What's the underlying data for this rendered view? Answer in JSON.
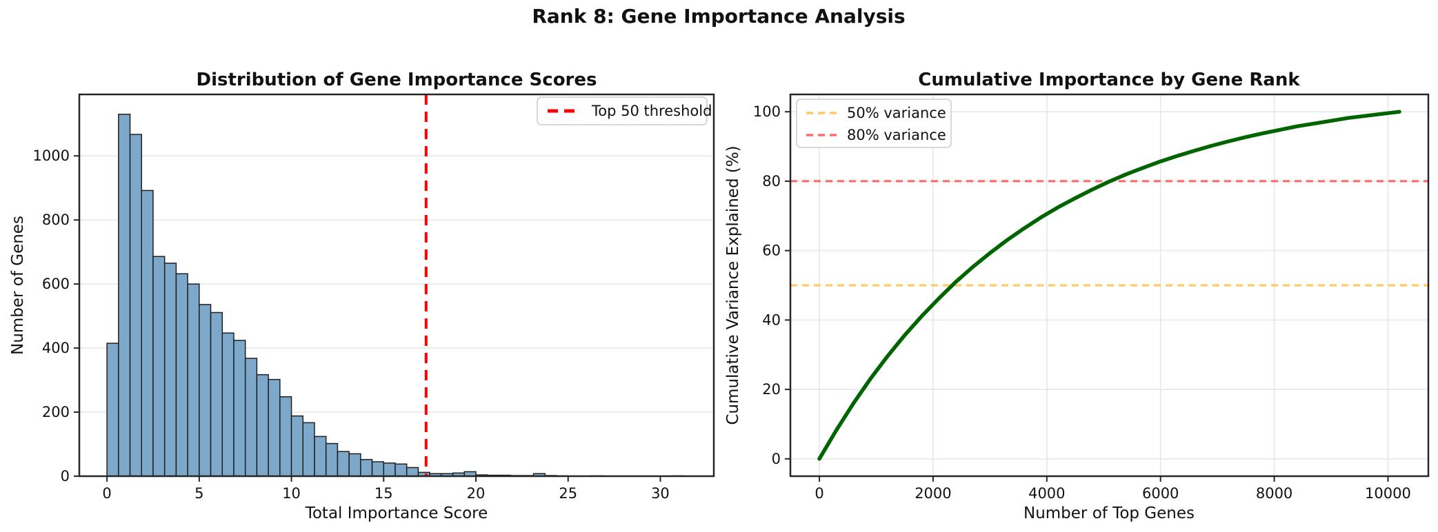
{
  "figure": {
    "suptitle": "Rank 8: Gene Importance Analysis",
    "background": "#ffffff",
    "spine_color": "#262626",
    "grid_color": "#e7e7e7"
  },
  "chart_data": [
    {
      "type": "bar",
      "title": "Distribution of Gene Importance Scores",
      "xlabel": "Total Importance Score",
      "ylabel": "Number of Genes",
      "bar_color": "#7da8ca",
      "bar_edge_color": "#1f1f1f",
      "bin_start": 0,
      "bin_width": 0.625,
      "values": [
        415,
        1130,
        1067,
        892,
        686,
        665,
        632,
        600,
        536,
        511,
        447,
        424,
        368,
        317,
        302,
        248,
        188,
        167,
        124,
        102,
        77,
        70,
        52,
        45,
        41,
        38,
        27,
        12,
        8,
        8,
        10,
        14,
        4,
        3,
        3,
        2,
        2,
        8,
        2,
        1,
        0,
        0,
        1,
        0,
        0,
        0,
        0,
        0,
        0,
        1
      ],
      "xticks": [
        0,
        5,
        10,
        15,
        20,
        25,
        30
      ],
      "yticks": [
        0,
        200,
        400,
        600,
        800,
        1000
      ],
      "xlim": [
        -1.5,
        32.9
      ],
      "ylim": [
        0,
        1192
      ],
      "grid": "y",
      "threshold_line": {
        "x": 17.3,
        "color": "#ff0000",
        "dash": "15 10",
        "width": 4
      },
      "legend": {
        "position": "upper right",
        "entries": [
          {
            "label": "Top 50 threshold",
            "color": "#ff0000",
            "dashed": true
          }
        ]
      }
    },
    {
      "type": "line",
      "title": "Cumulative Importance by Gene Rank",
      "xlabel": "Number of Top Genes",
      "ylabel": "Cumulative Variance Explained (%)",
      "line_color": "#006400",
      "line_width": 5.5,
      "x": [
        0,
        300,
        600,
        900,
        1200,
        1500,
        1800,
        2100,
        2400,
        2700,
        3000,
        3300,
        3600,
        3900,
        4200,
        4500,
        4800,
        5100,
        5400,
        5700,
        6000,
        6300,
        6600,
        6900,
        7200,
        7500,
        7800,
        8100,
        8400,
        8700,
        9000,
        9300,
        9600,
        9900,
        10200
      ],
      "y": [
        0,
        8.3,
        16.0,
        23.1,
        29.6,
        35.6,
        41.1,
        46.2,
        51.0,
        55.3,
        59.3,
        63.0,
        66.4,
        69.6,
        72.5,
        75.1,
        77.6,
        79.9,
        82.0,
        83.9,
        85.7,
        87.3,
        88.8,
        90.2,
        91.5,
        92.7,
        93.8,
        94.8,
        95.8,
        96.6,
        97.4,
        98.2,
        98.8,
        99.4,
        100.0
      ],
      "xticks": [
        0,
        2000,
        4000,
        6000,
        8000,
        10000
      ],
      "yticks": [
        0,
        20,
        40,
        60,
        80,
        100
      ],
      "xlim": [
        -510,
        10710
      ],
      "ylim": [
        -5,
        105
      ],
      "grid": "both",
      "hlines": [
        {
          "y": 50,
          "color": "#ffc966",
          "dash": "10 7",
          "width": 3.2
        },
        {
          "y": 80,
          "color": "#f76f6f",
          "dash": "10 7",
          "width": 3.2
        }
      ],
      "legend": {
        "position": "upper left",
        "entries": [
          {
            "label": "50% variance",
            "color": "#ffc966",
            "dashed": true
          },
          {
            "label": "80% variance",
            "color": "#f76f6f",
            "dashed": true
          }
        ]
      }
    }
  ]
}
